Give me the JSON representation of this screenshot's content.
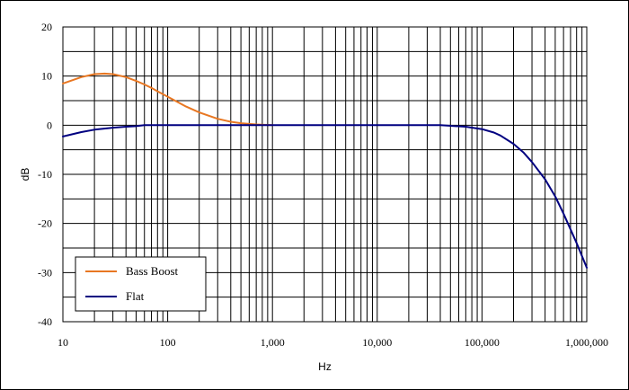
{
  "chart_data": {
    "type": "line",
    "title": "",
    "xlabel": "Hz",
    "ylabel": "dB",
    "xscale": "log",
    "xlim": [
      10,
      1000000
    ],
    "ylim": [
      -40,
      20
    ],
    "grid": true,
    "legend_position": "bottom-left",
    "x_tick_labels": [
      "10",
      "100",
      "1,000",
      "10,000",
      "100,000",
      "1,000,000"
    ],
    "x_tick_values": [
      10,
      100,
      1000,
      10000,
      100000,
      1000000
    ],
    "y_ticks": [
      20,
      10,
      0,
      -10,
      -20,
      -30,
      -40
    ],
    "series": [
      {
        "name": "Bass Boost",
        "color": "#e87722",
        "x": [
          10,
          15,
          20,
          25,
          30,
          40,
          50,
          60,
          70,
          80,
          100,
          150,
          200,
          300,
          400,
          500,
          700,
          1000
        ],
        "y": [
          8.5,
          9.8,
          10.4,
          10.5,
          10.4,
          9.8,
          9.0,
          8.3,
          7.6,
          6.9,
          5.8,
          3.8,
          2.6,
          1.3,
          0.7,
          0.4,
          0.15,
          0.0
        ]
      },
      {
        "name": "Flat",
        "color": "#000080",
        "x": [
          10,
          15,
          20,
          30,
          40,
          50,
          60,
          100,
          1000,
          10000,
          40000,
          70000,
          100000,
          130000,
          150000,
          200000,
          250000,
          300000,
          400000,
          500000,
          600000,
          700000,
          800000,
          1000000
        ],
        "y": [
          -2.3,
          -1.4,
          -0.9,
          -0.5,
          -0.3,
          -0.2,
          0.0,
          0.0,
          0.0,
          0.0,
          0.0,
          -0.3,
          -0.8,
          -1.5,
          -2.1,
          -3.8,
          -5.6,
          -7.5,
          -11.0,
          -14.5,
          -18.0,
          -21.2,
          -24.0,
          -29.0
        ]
      }
    ]
  }
}
